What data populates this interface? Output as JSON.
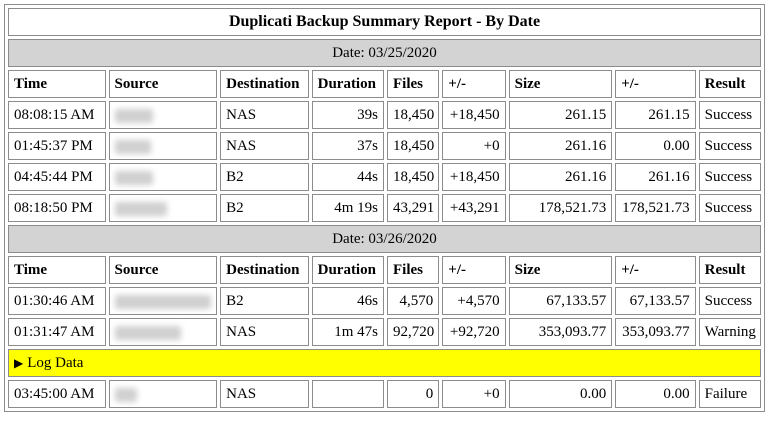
{
  "title": "Duplicati Backup Summary Report - By Date",
  "headers": {
    "time": "Time",
    "source": "Source",
    "destination": "Destination",
    "duration": "Duration",
    "files": "Files",
    "files_delta": "+/-",
    "size": "Size",
    "size_delta": "+/-",
    "result": "Result"
  },
  "groups": [
    {
      "date_label": "Date: 03/25/2020",
      "rows": [
        {
          "time": "08:08:15 AM",
          "destination": "NAS",
          "duration": "39s",
          "files": "18,450",
          "files_delta": "+18,450",
          "size": "261.15",
          "size_delta": "261.15",
          "result": "Success"
        },
        {
          "time": "01:45:37 PM",
          "destination": "NAS",
          "duration": "37s",
          "files": "18,450",
          "files_delta": "+0",
          "size": "261.16",
          "size_delta": "0.00",
          "result": "Success"
        },
        {
          "time": "04:45:44 PM",
          "destination": "B2",
          "duration": "44s",
          "files": "18,450",
          "files_delta": "+18,450",
          "size": "261.16",
          "size_delta": "261.16",
          "result": "Success"
        },
        {
          "time": "08:18:50 PM",
          "destination": "B2",
          "duration": "4m 19s",
          "files": "43,291",
          "files_delta": "+43,291",
          "size": "178,521.73",
          "size_delta": "178,521.73",
          "result": "Success"
        }
      ]
    },
    {
      "date_label": "Date: 03/26/2020",
      "rows": [
        {
          "time": "01:30:46 AM",
          "destination": "B2",
          "duration": "46s",
          "files": "4,570",
          "files_delta": "+4,570",
          "size": "67,133.57",
          "size_delta": "67,133.57",
          "result": "Success"
        },
        {
          "time": "01:31:47 AM",
          "destination": "NAS",
          "duration": "1m 47s",
          "files": "92,720",
          "files_delta": "+92,720",
          "size": "353,093.77",
          "size_delta": "353,093.77",
          "result": "Warning"
        }
      ],
      "log_label": "Log Data",
      "after_log_rows": [
        {
          "time": "03:45:00 AM",
          "destination": "NAS",
          "duration": "",
          "files": "0",
          "files_delta": "+0",
          "size": "0.00",
          "size_delta": "0.00",
          "result": "Failure"
        }
      ]
    }
  ],
  "colors": {
    "date_band": "#d3d3d3",
    "log_band": "#ffff00",
    "border": "#8c8c8c"
  },
  "icons": {
    "log_toggle": "triangle-right-icon"
  }
}
